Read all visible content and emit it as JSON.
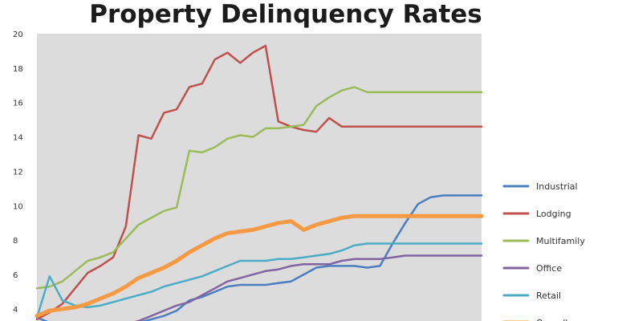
{
  "chart_data": {
    "type": "line",
    "title": "Property Delinquency Rates",
    "xlabel": "",
    "ylabel": "",
    "ylim": [
      3.3,
      20
    ],
    "yticks": [
      4,
      6,
      8,
      10,
      12,
      14,
      16,
      18,
      20
    ],
    "x": [
      1,
      2,
      3,
      4,
      5,
      6,
      7,
      8,
      9,
      10,
      11,
      12,
      13,
      14,
      15,
      16,
      17,
      18,
      19,
      20,
      21,
      22,
      23,
      24,
      25,
      26,
      27,
      28,
      29,
      30,
      31,
      32,
      33,
      34,
      35,
      36
    ],
    "xlim": [
      1,
      36
    ],
    "grid": false,
    "background": "#dcdcdc",
    "legend_position": "right",
    "series": [
      {
        "name": "Industrial",
        "color": "#4a7ec0",
        "values": [
          3.5,
          3.2,
          3.1,
          3.0,
          3.0,
          3.0,
          3.0,
          3.1,
          3.2,
          3.4,
          3.6,
          3.9,
          4.5,
          4.7,
          5.0,
          5.3,
          5.4,
          5.4,
          5.4,
          5.5,
          5.6,
          6.0,
          6.4,
          6.5,
          6.5,
          6.5,
          6.4,
          6.5,
          7.8,
          9.0,
          10.1,
          10.5,
          10.6,
          10.6,
          10.6,
          10.6
        ]
      },
      {
        "name": "Lodging",
        "color": "#c0504d",
        "values": [
          3.4,
          3.8,
          4.3,
          5.2,
          6.1,
          6.5,
          7.0,
          8.8,
          14.1,
          13.9,
          15.4,
          15.6,
          16.9,
          17.1,
          18.5,
          18.9,
          18.3,
          18.9,
          19.3,
          14.9,
          14.6,
          14.4,
          14.3,
          15.1,
          14.6,
          14.6,
          14.6,
          14.6,
          14.6,
          14.6,
          14.6,
          14.6,
          14.6,
          14.6,
          14.6,
          14.6
        ]
      },
      {
        "name": "Multifamily",
        "color": "#9bbb59",
        "values": [
          5.2,
          5.3,
          5.6,
          6.2,
          6.8,
          7.0,
          7.3,
          8.1,
          8.9,
          9.3,
          9.7,
          9.9,
          13.2,
          13.1,
          13.4,
          13.9,
          14.1,
          14.0,
          14.5,
          14.5,
          14.6,
          14.7,
          15.8,
          16.3,
          16.7,
          16.9,
          16.6,
          16.6,
          16.6,
          16.6,
          16.6,
          16.6,
          16.6,
          16.6,
          16.6,
          16.6
        ]
      },
      {
        "name": "Office",
        "color": "#8064a2",
        "values": [
          3.2,
          3.0,
          2.9,
          2.9,
          2.9,
          2.9,
          3.0,
          3.1,
          3.3,
          3.6,
          3.9,
          4.2,
          4.4,
          4.8,
          5.2,
          5.6,
          5.8,
          6.0,
          6.2,
          6.3,
          6.5,
          6.6,
          6.6,
          6.6,
          6.8,
          6.9,
          6.9,
          6.9,
          7.0,
          7.1,
          7.1,
          7.1,
          7.1,
          7.1,
          7.1,
          7.1
        ]
      },
      {
        "name": "Retail",
        "color": "#4bacc6",
        "values": [
          3.5,
          5.9,
          4.5,
          4.2,
          4.1,
          4.2,
          4.4,
          4.6,
          4.8,
          5.0,
          5.3,
          5.5,
          5.7,
          5.9,
          6.2,
          6.5,
          6.8,
          6.8,
          6.8,
          6.9,
          6.9,
          7.0,
          7.1,
          7.2,
          7.4,
          7.7,
          7.8,
          7.8,
          7.8,
          7.8,
          7.8,
          7.8,
          7.8,
          7.8,
          7.8,
          7.8
        ]
      },
      {
        "name": "Overall",
        "color": "#f59a42",
        "values": [
          3.6,
          3.9,
          4.0,
          4.1,
          4.3,
          4.6,
          4.9,
          5.3,
          5.8,
          6.1,
          6.4,
          6.8,
          7.3,
          7.7,
          8.1,
          8.4,
          8.5,
          8.6,
          8.8,
          9.0,
          9.1,
          8.6,
          8.9,
          9.1,
          9.3,
          9.4,
          9.4,
          9.4,
          9.4,
          9.4,
          9.4,
          9.4,
          9.4,
          9.4,
          9.4,
          9.4
        ]
      }
    ]
  }
}
